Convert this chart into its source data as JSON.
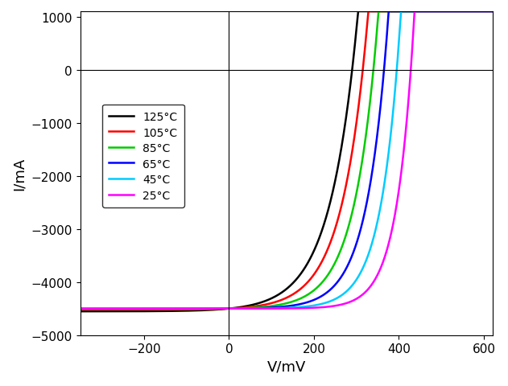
{
  "title": "",
  "xlabel": "V/mV",
  "ylabel": "I/mA",
  "xlim": [
    -350,
    620
  ],
  "ylim": [
    -5000,
    1100
  ],
  "xticks": [
    -200,
    0,
    200,
    400,
    600
  ],
  "yticks": [
    -5000,
    -4000,
    -3000,
    -2000,
    -1000,
    0,
    1000
  ],
  "background_color": "#ffffff",
  "colors": [
    "#000000",
    "#ff0000",
    "#00cc00",
    "#0000ff",
    "#00ccff",
    "#ff00ff"
  ],
  "labels": [
    "125°C",
    "105°C",
    "85°C",
    "65°C",
    "45°C",
    "25°C"
  ],
  "Iph": 4500,
  "linewidth": 1.8,
  "legend_fontsize": 10,
  "axis_fontsize": 13,
  "tick_fontsize": 11,
  "curve_params": [
    {
      "VT": 65.0,
      "I0": 4500,
      "Voc": 290
    },
    {
      "VT": 60.0,
      "I0": 4500,
      "Voc": 315
    },
    {
      "VT": 55.0,
      "I0": 4500,
      "Voc": 340
    },
    {
      "VT": 50.0,
      "I0": 4500,
      "Voc": 365
    },
    {
      "VT": 45.0,
      "I0": 4500,
      "Voc": 395
    },
    {
      "VT": 40.0,
      "I0": 4500,
      "Voc": 428
    }
  ]
}
